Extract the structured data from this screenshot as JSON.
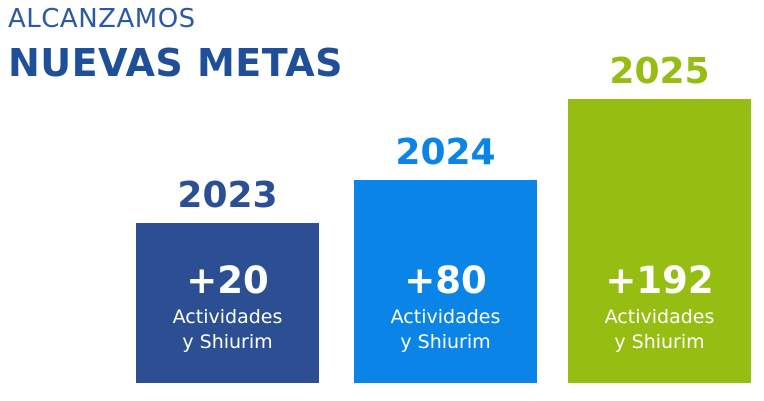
{
  "header": {
    "eyebrow": "ALCANZAMOS",
    "headline": "NUEVAS METAS"
  },
  "colors": {
    "eyebrow": "#2a5aa6",
    "headline": "#1f4f99"
  },
  "chart_data": {
    "type": "bar",
    "categories": [
      "2023",
      "2024",
      "2025"
    ],
    "values": [
      20,
      80,
      192
    ],
    "value_labels": [
      "+20",
      "+80",
      "+192"
    ],
    "unit_line1": "Actividades",
    "unit_line2": "y Shiurim",
    "bar_colors": [
      "#2c4f93",
      "#0b84e8",
      "#96bd12"
    ],
    "year_label_colors": [
      "#2c4f93",
      "#0b84e8",
      "#96bd12"
    ],
    "grid": false,
    "legend": "none"
  }
}
